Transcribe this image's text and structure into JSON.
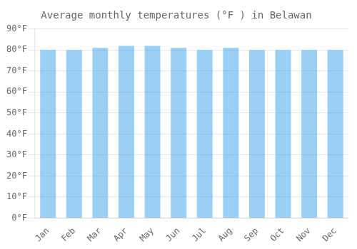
{
  "chart_data": {
    "type": "bar",
    "title": "Average monthly temperatures (°F ) in Belawan",
    "categories": [
      "Jan",
      "Feb",
      "Mar",
      "Apr",
      "May",
      "Jun",
      "Jul",
      "Aug",
      "Sep",
      "Oct",
      "Nov",
      "Dec"
    ],
    "values": [
      80,
      80,
      81,
      82,
      82,
      81,
      80,
      81,
      80,
      80,
      80,
      80
    ],
    "ylim": [
      0,
      90
    ],
    "yticks": [
      {
        "value": 0,
        "label": "0°F"
      },
      {
        "value": 10,
        "label": "10°F"
      },
      {
        "value": 20,
        "label": "20°F"
      },
      {
        "value": 30,
        "label": "30°F"
      },
      {
        "value": 40,
        "label": "40°F"
      },
      {
        "value": 50,
        "label": "50°F"
      },
      {
        "value": 60,
        "label": "60°F"
      },
      {
        "value": 70,
        "label": "70°F"
      },
      {
        "value": 80,
        "label": "80°F"
      },
      {
        "value": 90,
        "label": "90°F"
      }
    ],
    "grid": true
  }
}
